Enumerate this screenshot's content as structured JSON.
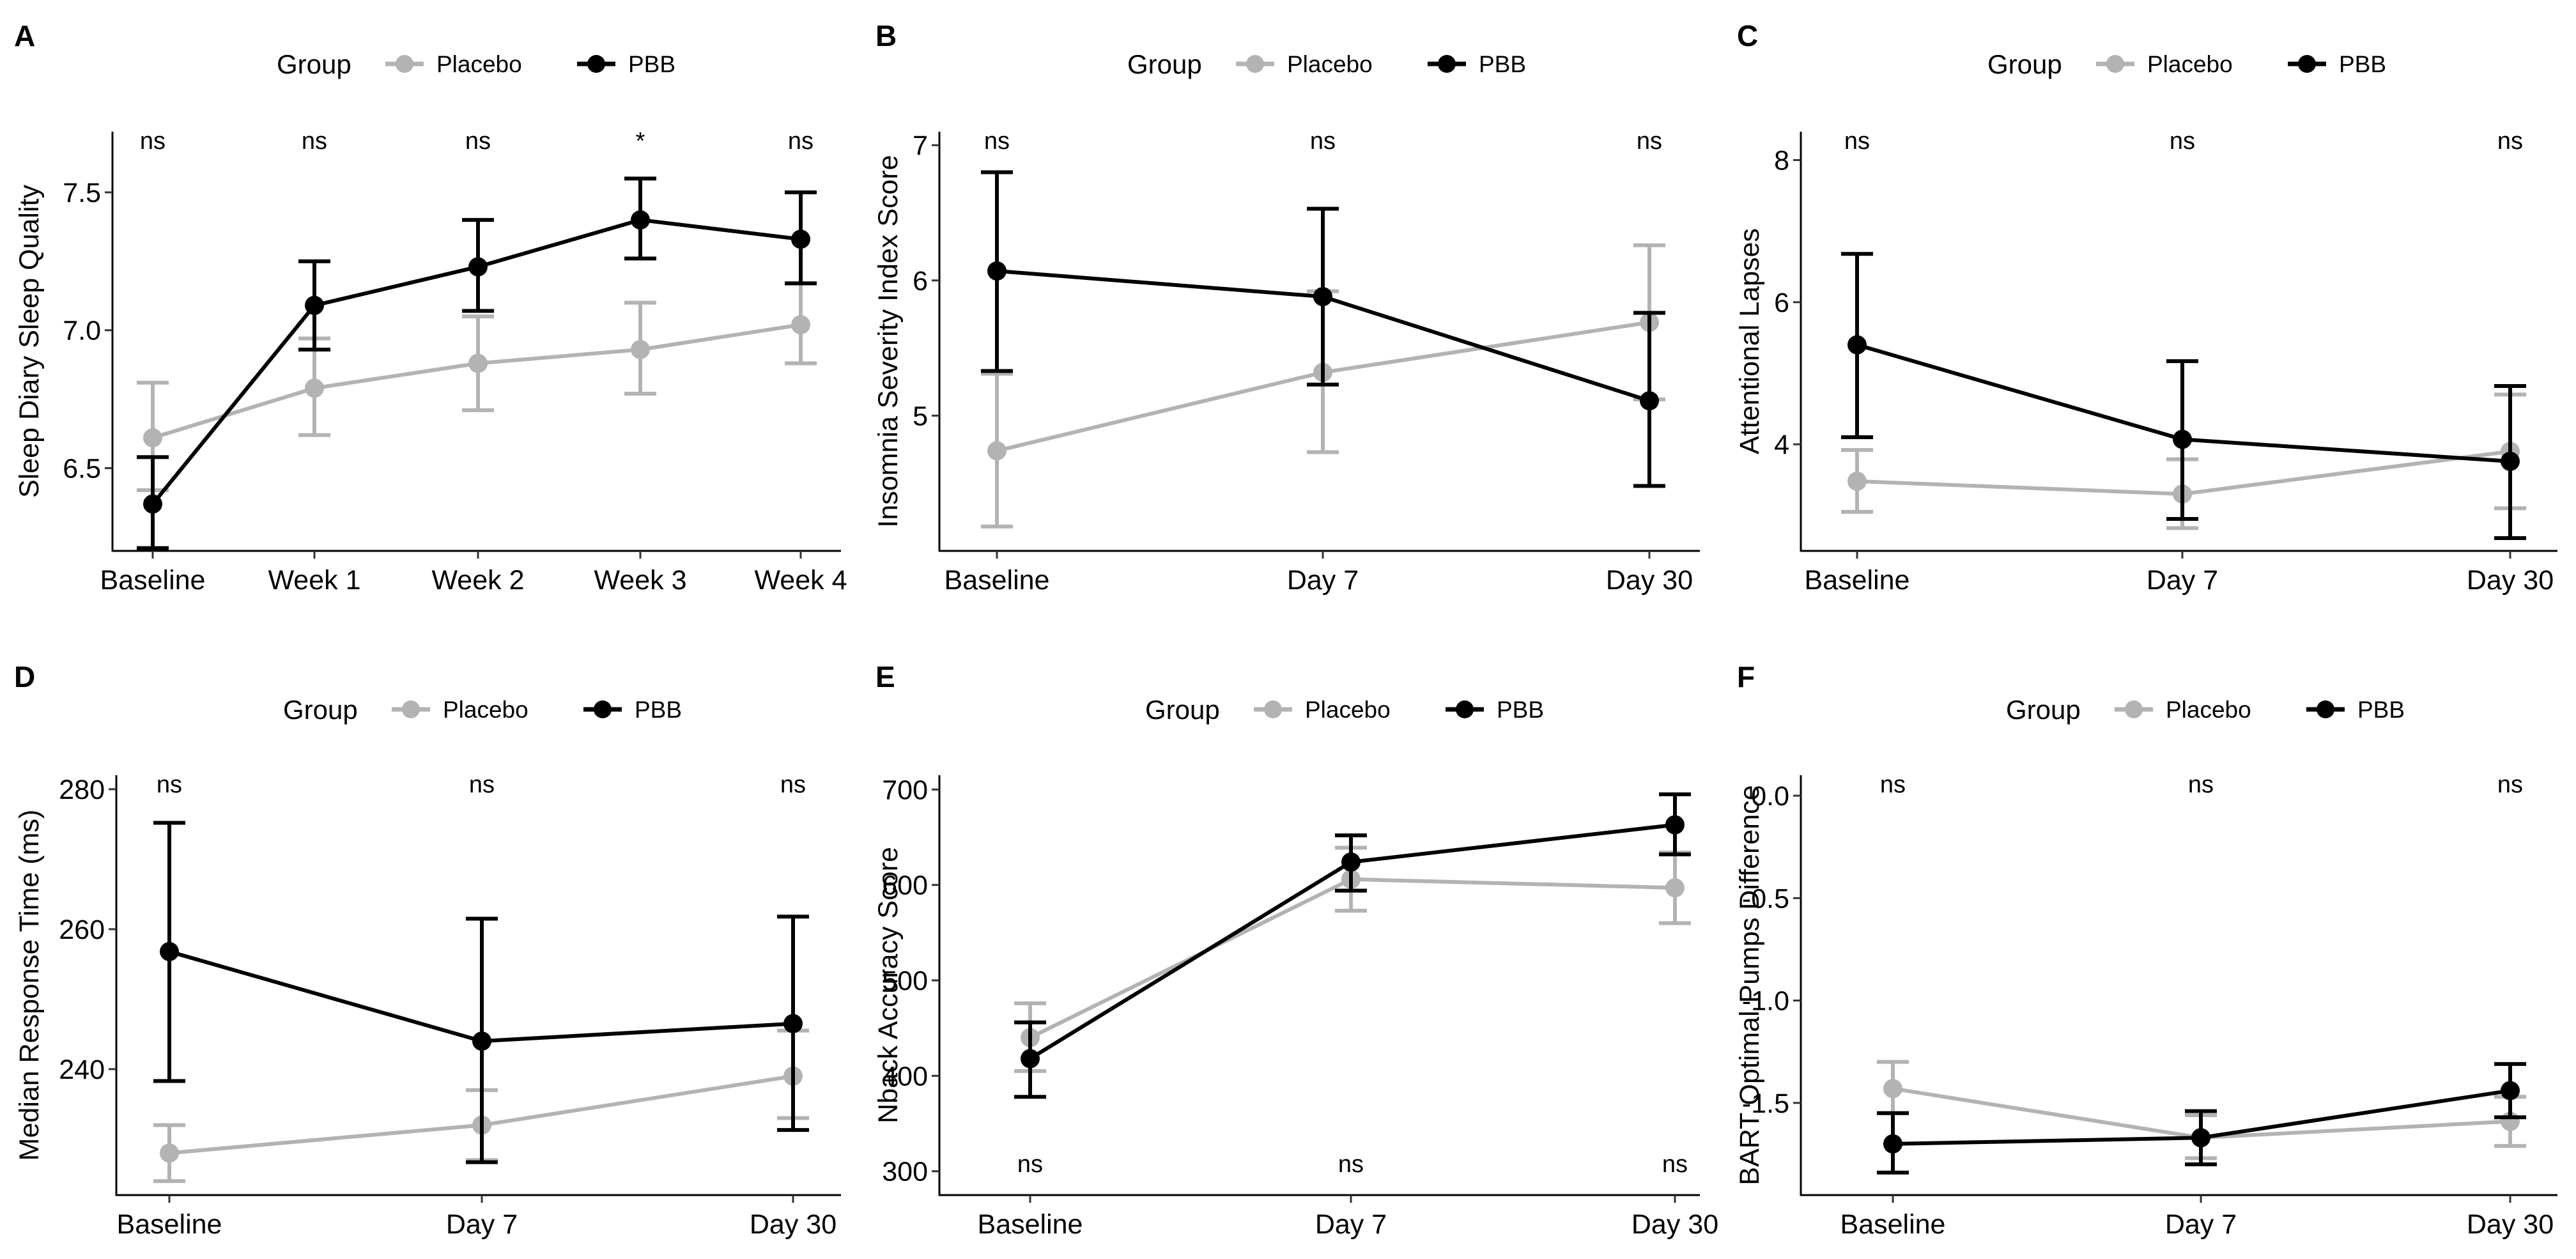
{
  "legend": {
    "title": "Group",
    "entries": [
      {
        "name": "Placebo",
        "color": "#b3b3b3"
      },
      {
        "name": "PBB",
        "color": "#000000"
      }
    ]
  },
  "chart_data": [
    {
      "panel": "A",
      "type": "line",
      "ylabel": "Sleep Diary Sleep Quality",
      "categories": [
        "Baseline",
        "Week 1",
        "Week 2",
        "Week 3",
        "Week 4"
      ],
      "ylim": [
        6.2,
        7.72
      ],
      "yticks": [
        6.5,
        7.0,
        7.5
      ],
      "ytick_labels": [
        "6.5",
        "7.0",
        "7.5"
      ],
      "significance": [
        "ns",
        "ns",
        "ns",
        "*",
        "ns"
      ],
      "sig_position": "top",
      "series": [
        {
          "name": "Placebo",
          "values": [
            6.61,
            6.79,
            6.88,
            6.93,
            7.02
          ],
          "lower": [
            6.42,
            6.62,
            6.71,
            6.77,
            6.88
          ],
          "upper": [
            6.81,
            6.97,
            7.05,
            7.1,
            7.17
          ]
        },
        {
          "name": "PBB",
          "values": [
            6.37,
            7.09,
            7.23,
            7.4,
            7.33
          ],
          "lower": [
            6.21,
            6.93,
            7.07,
            7.26,
            7.17
          ],
          "upper": [
            6.54,
            7.25,
            7.4,
            7.55,
            7.5
          ]
        }
      ]
    },
    {
      "panel": "B",
      "type": "line",
      "ylabel": "Insomnia Severity Index Score",
      "categories": [
        "Baseline",
        "Day 7",
        "Day 30"
      ],
      "ylim": [
        4.0,
        7.1
      ],
      "yticks": [
        5,
        6,
        7
      ],
      "ytick_labels": [
        "5",
        "6",
        "7"
      ],
      "significance": [
        "ns",
        "ns",
        "ns"
      ],
      "sig_position": "top",
      "series": [
        {
          "name": "Placebo",
          "values": [
            4.74,
            5.32,
            5.69
          ],
          "lower": [
            4.18,
            4.73,
            5.12
          ],
          "upper": [
            5.31,
            5.92,
            6.26
          ]
        },
        {
          "name": "PBB",
          "values": [
            6.07,
            5.88,
            5.11
          ],
          "lower": [
            5.33,
            5.23,
            4.48
          ],
          "upper": [
            6.8,
            6.53,
            5.76
          ]
        }
      ]
    },
    {
      "panel": "C",
      "type": "line",
      "ylabel": "Attentional Lapses",
      "categories": [
        "Baseline",
        "Day 7",
        "Day 30"
      ],
      "ylim": [
        2.5,
        8.4
      ],
      "yticks": [
        4,
        6,
        8
      ],
      "ytick_labels": [
        "4",
        "6",
        "8"
      ],
      "significance": [
        "ns",
        "ns",
        "ns"
      ],
      "sig_position": "top",
      "series": [
        {
          "name": "Placebo",
          "values": [
            3.48,
            3.3,
            3.9
          ],
          "lower": [
            3.05,
            2.82,
            3.1
          ],
          "upper": [
            3.92,
            3.79,
            4.7
          ]
        },
        {
          "name": "PBB",
          "values": [
            5.4,
            4.07,
            3.76
          ],
          "lower": [
            4.1,
            2.95,
            2.68
          ],
          "upper": [
            6.68,
            5.17,
            4.82
          ]
        }
      ]
    },
    {
      "panel": "D",
      "type": "line",
      "ylabel": "Median Response Time (ms)",
      "categories": [
        "Baseline",
        "Day 7",
        "Day 30"
      ],
      "ylim": [
        222.0,
        282.0
      ],
      "yticks": [
        240,
        260,
        280
      ],
      "ytick_labels": [
        "240",
        "260",
        "280"
      ],
      "significance": [
        "ns",
        "ns",
        "ns"
      ],
      "sig_position": "top",
      "series": [
        {
          "name": "Placebo",
          "values": [
            228.0,
            232.0,
            239.0
          ],
          "lower": [
            224.0,
            227.0,
            233.0
          ],
          "upper": [
            232.0,
            237.0,
            245.5
          ]
        },
        {
          "name": "PBB",
          "values": [
            256.8,
            244.0,
            246.5
          ],
          "lower": [
            238.3,
            226.7,
            231.3
          ],
          "upper": [
            275.2,
            261.5,
            261.8
          ]
        }
      ]
    },
    {
      "panel": "E",
      "type": "line",
      "ylabel": "Nback Accuracy Score",
      "categories": [
        "Baseline",
        "Day 7",
        "Day 30"
      ],
      "ylim": [
        275,
        715
      ],
      "yticks": [
        300,
        400,
        500,
        600,
        700
      ],
      "ytick_labels": [
        "300",
        "400",
        "500",
        "600",
        "700"
      ],
      "significance": [
        "ns",
        "ns",
        "ns"
      ],
      "sig_position": "bottom",
      "series": [
        {
          "name": "Placebo",
          "values": [
            440,
            606,
            597
          ],
          "lower": [
            405,
            573,
            560
          ],
          "upper": [
            476,
            639,
            634
          ]
        },
        {
          "name": "PBB",
          "values": [
            418,
            624,
            663
          ],
          "lower": [
            378,
            594,
            632
          ],
          "upper": [
            456,
            652,
            695
          ]
        }
      ]
    },
    {
      "panel": "F",
      "type": "line",
      "ylabel": "BART Optimal Pumps Difference",
      "categories": [
        "Baseline",
        "Day 7",
        "Day 30"
      ],
      "ylim": [
        -1.95,
        0.1
      ],
      "yticks": [
        -1.5,
        -1.0,
        -0.5,
        0.0
      ],
      "ytick_labels": [
        "-1.5",
        "-1.0",
        "-0.5",
        "0.0"
      ],
      "significance": [
        "ns",
        "ns",
        "ns"
      ],
      "sig_position": "top",
      "series": [
        {
          "name": "Placebo",
          "values": [
            -1.43,
            -1.67,
            -1.59
          ],
          "lower": [
            -1.55,
            -1.77,
            -1.71
          ],
          "upper": [
            -1.3,
            -1.56,
            -1.47
          ]
        },
        {
          "name": "PBB",
          "values": [
            -1.7,
            -1.67,
            -1.44
          ],
          "lower": [
            -1.84,
            -1.8,
            -1.57
          ],
          "upper": [
            -1.55,
            -1.54,
            -1.31
          ]
        }
      ]
    }
  ]
}
